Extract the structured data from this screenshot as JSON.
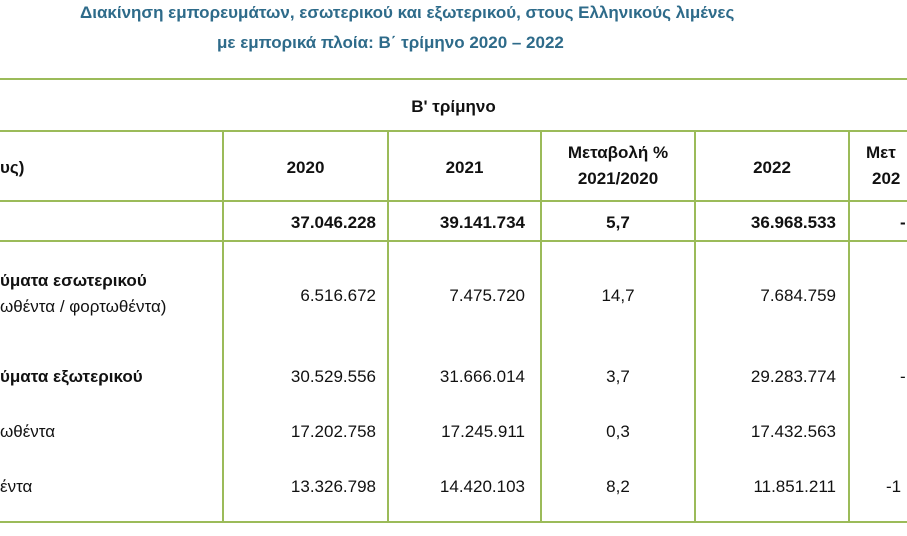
{
  "title_line1": "Διακίνηση εμπορευμάτων, εσωτερικού και εξωτερικού, στους Ελληνικούς λιμένες",
  "title_line2": "με εμπορικά πλοία: Β΄ τρίμηνο 2020 – 2022",
  "table": {
    "group_header": "Β' τρίμηνο",
    "unit_label": "υς)",
    "col_2020": "2020",
    "col_2021": "2021",
    "col_change_1": "Μεταβολή %",
    "col_change_1b": "2021/2020",
    "col_2022": "2022",
    "col_change_2": "Μετ",
    "col_change_2b": "202",
    "rows": [
      {
        "label": "",
        "label2": "",
        "v2020": "37.046.228",
        "v2021": "39.141.734",
        "ch1": "5,7",
        "v2022": "36.968.533",
        "ch2": "-"
      },
      {
        "label": "ύματα εσωτερικού",
        "label2": "ωθέντα / φορτωθέντα)",
        "v2020": "6.516.672",
        "v2021": "7.475.720",
        "ch1": "14,7",
        "v2022": "7.684.759",
        "ch2": ""
      },
      {
        "label": "ύματα εξωτερικού",
        "label2": "",
        "v2020": "30.529.556",
        "v2021": "31.666.014",
        "ch1": "3,7",
        "v2022": "29.283.774",
        "ch2": "-"
      },
      {
        "label": "ωθέντα",
        "label2": "",
        "v2020": "17.202.758",
        "v2021": "17.245.911",
        "ch1": "0,3",
        "v2022": "17.432.563",
        "ch2": ""
      },
      {
        "label": "έντα",
        "label2": "",
        "v2020": "13.326.798",
        "v2021": "14.420.103",
        "ch1": "8,2",
        "v2022": "11.851.211",
        "ch2": "-1"
      }
    ]
  }
}
